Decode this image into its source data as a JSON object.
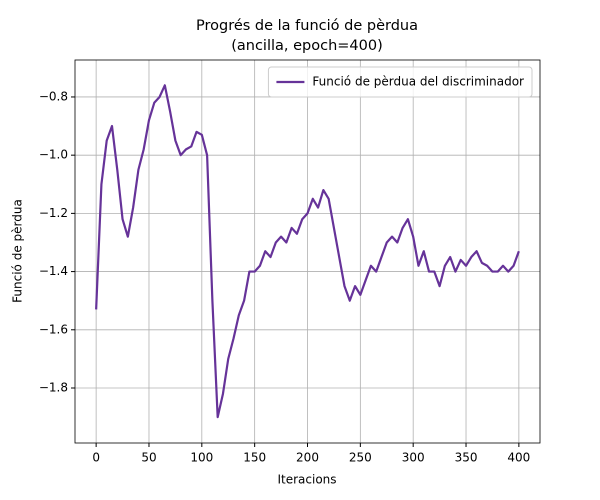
{
  "chart_data": {
    "type": "line",
    "title": [
      "Progrés de la funció de pèrdua",
      "(ancilla, epoch=400)"
    ],
    "x_label": "Iteracions",
    "y_label": "Funció de pèrdua",
    "x": [
      0,
      5,
      10,
      15,
      20,
      25,
      30,
      35,
      40,
      45,
      50,
      55,
      60,
      65,
      70,
      75,
      80,
      85,
      90,
      95,
      100,
      105,
      110,
      115,
      120,
      125,
      130,
      135,
      140,
      145,
      150,
      155,
      160,
      165,
      170,
      175,
      180,
      185,
      190,
      195,
      200,
      205,
      210,
      215,
      220,
      225,
      230,
      235,
      240,
      245,
      250,
      255,
      260,
      265,
      270,
      275,
      280,
      285,
      290,
      295,
      300,
      305,
      310,
      315,
      320,
      325,
      330,
      335,
      340,
      345,
      350,
      355,
      360,
      365,
      370,
      375,
      380,
      385,
      390,
      395,
      400
    ],
    "series": [
      {
        "name": "Funció de pèrdua del discriminador",
        "color": "#663399",
        "values": [
          -1.53,
          -1.1,
          -0.95,
          -0.9,
          -1.05,
          -1.22,
          -1.28,
          -1.18,
          -1.05,
          -0.98,
          -0.88,
          -0.82,
          -0.8,
          -0.76,
          -0.85,
          -0.95,
          -1.0,
          -0.98,
          -0.97,
          -0.92,
          -0.93,
          -1.0,
          -1.5,
          -1.9,
          -1.82,
          -1.7,
          -1.63,
          -1.55,
          -1.5,
          -1.4,
          -1.4,
          -1.38,
          -1.33,
          -1.35,
          -1.3,
          -1.28,
          -1.3,
          -1.25,
          -1.27,
          -1.22,
          -1.2,
          -1.15,
          -1.18,
          -1.12,
          -1.15,
          -1.25,
          -1.35,
          -1.45,
          -1.5,
          -1.45,
          -1.48,
          -1.43,
          -1.38,
          -1.4,
          -1.35,
          -1.3,
          -1.28,
          -1.3,
          -1.25,
          -1.22,
          -1.28,
          -1.38,
          -1.33,
          -1.4,
          -1.4,
          -1.45,
          -1.38,
          -1.35,
          -1.4,
          -1.36,
          -1.38,
          -1.35,
          -1.33,
          -1.37,
          -1.38,
          -1.4,
          -1.4,
          -1.38,
          -1.4,
          -1.38,
          -1.33
        ]
      }
    ],
    "xlim": [
      -20,
      420
    ],
    "ylim": [
      -1.989,
      -0.673
    ],
    "xticks": [
      0,
      50,
      100,
      150,
      200,
      250,
      300,
      350,
      400
    ],
    "yticks": [
      {
        "value": -1.8,
        "label": "−1.8"
      },
      {
        "value": -1.6,
        "label": "−1.6"
      },
      {
        "value": -1.4,
        "label": "−1.4"
      },
      {
        "value": -1.2,
        "label": "−1.2"
      },
      {
        "value": -1.0,
        "label": "−1.0"
      },
      {
        "value": -0.8,
        "label": "−0.8"
      }
    ],
    "grid": true,
    "legend": "upper right"
  }
}
